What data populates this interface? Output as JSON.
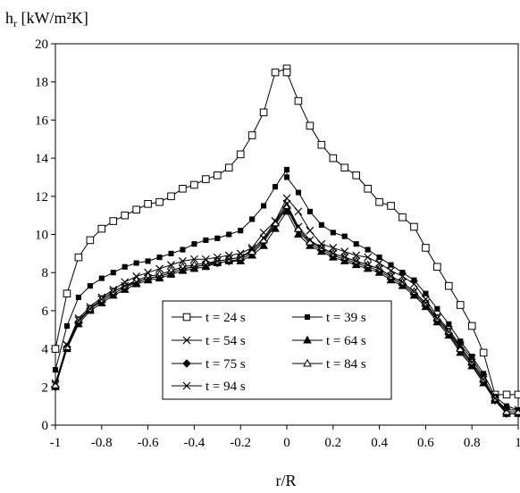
{
  "chart_data": {
    "type": "line",
    "title": "",
    "ylabel": "h",
    "ylabel_sub": "r",
    "ylabel_unit": " [kW/m²K]",
    "xlabel": "r/R",
    "xlim": [
      -1,
      1
    ],
    "ylim": [
      0,
      20
    ],
    "xticks": [
      "-1",
      "-0.8",
      "-0.6",
      "-0.4",
      "-0.2",
      "0",
      "0.2",
      "0.4",
      "0.6",
      "0.8",
      "1"
    ],
    "yticks": [
      "0",
      "2",
      "4",
      "6",
      "8",
      "10",
      "12",
      "14",
      "16",
      "18",
      "20"
    ],
    "grid": false,
    "legend_position": "center-bottom",
    "series": [
      {
        "name": "t = 24 s",
        "marker": "square-open",
        "x": [
          -1,
          -0.95,
          -0.9,
          -0.85,
          -0.8,
          -0.75,
          -0.7,
          -0.65,
          -0.6,
          -0.55,
          -0.5,
          -0.45,
          -0.4,
          -0.35,
          -0.3,
          -0.25,
          -0.2,
          -0.15,
          -0.1,
          -0.05,
          0,
          0,
          0.05,
          0.1,
          0.15,
          0.2,
          0.25,
          0.3,
          0.35,
          0.4,
          0.45,
          0.5,
          0.55,
          0.6,
          0.65,
          0.7,
          0.75,
          0.8,
          0.85,
          0.9,
          0.95,
          1
        ],
        "y": [
          4.0,
          6.9,
          8.8,
          9.7,
          10.3,
          10.7,
          11.0,
          11.3,
          11.6,
          11.7,
          12.0,
          12.4,
          12.6,
          12.9,
          13.1,
          13.5,
          14.2,
          15.2,
          16.4,
          18.5,
          18.7,
          18.5,
          17.0,
          15.7,
          14.7,
          14.0,
          13.5,
          13.1,
          12.4,
          11.7,
          11.5,
          10.9,
          10.4,
          9.3,
          8.3,
          7.3,
          6.3,
          5.2,
          3.8,
          1.6,
          1.6,
          1.6
        ]
      },
      {
        "name": "t = 39 s",
        "marker": "square-filled",
        "x": [
          -1,
          -0.95,
          -0.9,
          -0.85,
          -0.8,
          -0.75,
          -0.7,
          -0.65,
          -0.6,
          -0.55,
          -0.5,
          -0.45,
          -0.4,
          -0.35,
          -0.3,
          -0.25,
          -0.2,
          -0.15,
          -0.1,
          -0.05,
          0,
          0,
          0.05,
          0.1,
          0.15,
          0.2,
          0.25,
          0.3,
          0.35,
          0.4,
          0.45,
          0.5,
          0.55,
          0.6,
          0.65,
          0.7,
          0.75,
          0.8,
          0.85,
          0.9,
          0.95,
          1
        ],
        "y": [
          2.9,
          5.2,
          6.7,
          7.3,
          7.7,
          8.0,
          8.3,
          8.5,
          8.6,
          8.8,
          9.0,
          9.2,
          9.5,
          9.7,
          9.8,
          10.0,
          10.2,
          10.8,
          11.5,
          12.5,
          13.4,
          13.0,
          12.2,
          11.2,
          10.5,
          10.1,
          9.9,
          9.5,
          9.2,
          8.8,
          8.4,
          8.0,
          7.6,
          6.9,
          6.1,
          5.3,
          4.4,
          3.6,
          2.7,
          1.5,
          1.0,
          0.8
        ]
      },
      {
        "name": "t = 54 s",
        "marker": "x",
        "x": [
          -1,
          -0.95,
          -0.9,
          -0.85,
          -0.8,
          -0.75,
          -0.7,
          -0.65,
          -0.6,
          -0.55,
          -0.5,
          -0.45,
          -0.4,
          -0.35,
          -0.3,
          -0.25,
          -0.2,
          -0.15,
          -0.1,
          -0.05,
          0,
          0.05,
          0.1,
          0.15,
          0.2,
          0.25,
          0.3,
          0.35,
          0.4,
          0.45,
          0.5,
          0.55,
          0.6,
          0.65,
          0.7,
          0.75,
          0.8,
          0.85,
          0.9,
          0.95,
          1
        ],
        "y": [
          2.1,
          4.2,
          5.6,
          6.2,
          6.7,
          7.1,
          7.5,
          7.8,
          8.0,
          8.2,
          8.4,
          8.6,
          8.7,
          8.7,
          8.8,
          8.9,
          9.0,
          9.3,
          10.1,
          10.7,
          11.9,
          11.2,
          10.2,
          9.5,
          9.3,
          9.1,
          8.9,
          8.8,
          8.5,
          8.1,
          7.8,
          7.4,
          6.6,
          5.7,
          5.0,
          4.2,
          3.5,
          2.5,
          1.3,
          0.7,
          0.7
        ]
      },
      {
        "name": "t = 64 s",
        "marker": "triangle-filled",
        "x": [
          -1,
          -0.95,
          -0.9,
          -0.85,
          -0.8,
          -0.75,
          -0.7,
          -0.65,
          -0.6,
          -0.55,
          -0.5,
          -0.45,
          -0.4,
          -0.35,
          -0.3,
          -0.25,
          -0.2,
          -0.15,
          -0.1,
          -0.05,
          0,
          0.05,
          0.1,
          0.15,
          0.2,
          0.25,
          0.3,
          0.35,
          0.4,
          0.45,
          0.5,
          0.55,
          0.6,
          0.65,
          0.7,
          0.75,
          0.8,
          0.85,
          0.9,
          0.95,
          1
        ],
        "y": [
          2.0,
          4.0,
          5.3,
          6.0,
          6.4,
          6.8,
          7.1,
          7.4,
          7.6,
          7.7,
          7.9,
          8.1,
          8.2,
          8.3,
          8.5,
          8.6,
          8.6,
          8.9,
          9.4,
          10.3,
          11.2,
          10.0,
          9.4,
          9.1,
          8.8,
          8.6,
          8.4,
          8.2,
          8.0,
          7.6,
          7.3,
          6.8,
          6.2,
          5.4,
          4.7,
          3.8,
          3.1,
          2.2,
          1.3,
          0.6,
          0.6
        ]
      },
      {
        "name": "t = 75 s",
        "marker": "diamond-filled",
        "x": [
          -1,
          -0.95,
          -0.9,
          -0.85,
          -0.8,
          -0.75,
          -0.7,
          -0.65,
          -0.6,
          -0.55,
          -0.5,
          -0.45,
          -0.4,
          -0.35,
          -0.3,
          -0.25,
          -0.2,
          -0.15,
          -0.1,
          -0.05,
          0,
          0.05,
          0.1,
          0.15,
          0.2,
          0.25,
          0.3,
          0.35,
          0.4,
          0.45,
          0.5,
          0.55,
          0.6,
          0.65,
          0.7,
          0.75,
          0.8,
          0.85,
          0.9,
          0.95,
          1
        ],
        "y": [
          2.0,
          4.1,
          5.4,
          6.1,
          6.5,
          6.9,
          7.2,
          7.5,
          7.7,
          7.8,
          8.0,
          8.2,
          8.3,
          8.4,
          8.5,
          8.6,
          8.7,
          9.0,
          9.6,
          10.5,
          11.4,
          10.2,
          9.5,
          9.2,
          8.9,
          8.7,
          8.5,
          8.3,
          8.1,
          7.7,
          7.4,
          6.9,
          6.3,
          5.5,
          4.8,
          3.9,
          3.2,
          2.3,
          1.3,
          0.6,
          0.6
        ]
      },
      {
        "name": "t = 84 s",
        "marker": "triangle-open",
        "x": [
          -1,
          -0.95,
          -0.9,
          -0.85,
          -0.8,
          -0.75,
          -0.7,
          -0.65,
          -0.6,
          -0.55,
          -0.5,
          -0.45,
          -0.4,
          -0.35,
          -0.3,
          -0.25,
          -0.2,
          -0.15,
          -0.1,
          -0.05,
          0,
          0.05,
          0.1,
          0.15,
          0.2,
          0.25,
          0.3,
          0.35,
          0.4,
          0.45,
          0.5,
          0.55,
          0.6,
          0.65,
          0.7,
          0.75,
          0.8,
          0.85,
          0.9,
          0.95,
          1
        ],
        "y": [
          2.1,
          4.1,
          5.5,
          6.1,
          6.6,
          7.0,
          7.3,
          7.6,
          7.8,
          7.9,
          8.1,
          8.3,
          8.4,
          8.5,
          8.6,
          8.7,
          8.8,
          9.1,
          9.7,
          10.6,
          11.5,
          10.3,
          9.6,
          9.3,
          9.0,
          8.8,
          8.6,
          8.4,
          8.2,
          7.8,
          7.5,
          7.0,
          6.4,
          5.6,
          4.9,
          4.0,
          3.3,
          2.4,
          1.4,
          0.7,
          0.7
        ]
      },
      {
        "name": "t = 94 s",
        "marker": "x",
        "x": [
          -1,
          -0.95,
          -0.9,
          -0.85,
          -0.8,
          -0.75,
          -0.7,
          -0.65,
          -0.6,
          -0.55,
          -0.5,
          -0.45,
          -0.4,
          -0.35,
          -0.3,
          -0.25,
          -0.2,
          -0.15,
          -0.1,
          -0.05,
          0,
          0.05,
          0.1,
          0.15,
          0.2,
          0.25,
          0.3,
          0.35,
          0.4,
          0.45,
          0.5,
          0.55,
          0.6,
          0.65,
          0.7,
          0.75,
          0.8,
          0.85,
          0.9,
          0.95,
          1
        ],
        "y": [
          2.2,
          4.2,
          5.5,
          6.1,
          6.6,
          7.0,
          7.3,
          7.5,
          7.7,
          7.8,
          8.0,
          8.2,
          8.3,
          8.4,
          8.6,
          8.7,
          8.8,
          9.2,
          9.8,
          10.7,
          11.6,
          10.4,
          9.7,
          9.3,
          9.0,
          8.8,
          8.6,
          8.4,
          8.2,
          7.8,
          7.5,
          7.0,
          6.4,
          5.6,
          4.9,
          4.1,
          3.3,
          2.4,
          1.4,
          0.8,
          0.8
        ]
      }
    ]
  }
}
